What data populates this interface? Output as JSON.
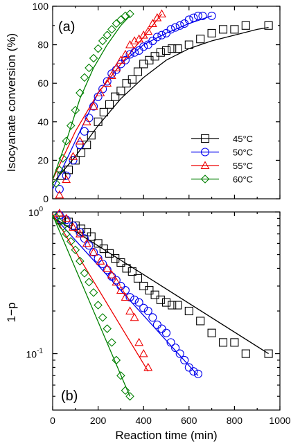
{
  "colors": {
    "45C": "#000000",
    "50C": "#0000ee",
    "55C": "#ee0000",
    "60C": "#008000"
  },
  "chart_data": [
    {
      "type": "scatter",
      "panel_label": "(a)",
      "ylabel": "Isocyanate conversion (%)",
      "xlim": [
        0,
        1000
      ],
      "ylim": [
        0,
        100
      ],
      "y_ticks": [
        "0",
        "20",
        "40",
        "60",
        "80",
        "100"
      ],
      "legend_position": "center-right",
      "series": [
        {
          "name": "45°C",
          "marker": "square",
          "color": "#000000",
          "x": [
            40,
            70,
            100,
            125,
            150,
            170,
            200,
            225,
            250,
            275,
            300,
            325,
            350,
            375,
            400,
            425,
            450,
            475,
            500,
            525,
            550,
            600,
            650,
            700,
            750,
            800,
            850,
            950
          ],
          "y": [
            12,
            15,
            20,
            24,
            28,
            33,
            40,
            45,
            49,
            53,
            56,
            60,
            62,
            66,
            70,
            72,
            74,
            76,
            77,
            78,
            78,
            80,
            83,
            86,
            88,
            88,
            90,
            90
          ],
          "fit_x": [
            0,
            100,
            200,
            300,
            400,
            500,
            600,
            700,
            800,
            900,
            950
          ],
          "fit_y": [
            8,
            22,
            38,
            52,
            63,
            72,
            78,
            82,
            85,
            88,
            89
          ]
        },
        {
          "name": "50°C",
          "marker": "circle",
          "color": "#0000ee",
          "x": [
            30,
            60,
            90,
            120,
            140,
            160,
            180,
            200,
            220,
            240,
            260,
            280,
            300,
            320,
            340,
            360,
            380,
            400,
            420,
            440,
            460,
            480,
            500,
            520,
            540,
            560,
            580,
            600,
            620,
            640,
            660,
            700
          ],
          "y": [
            5,
            12,
            20,
            28,
            35,
            42,
            48,
            53,
            57,
            61,
            65,
            67,
            70,
            72,
            75,
            76,
            77,
            79,
            80,
            82,
            84,
            85,
            86,
            88,
            89,
            90,
            91,
            93,
            94,
            95,
            95,
            95
          ],
          "fit_x": [
            0,
            100,
            200,
            300,
            400,
            500,
            600,
            700
          ],
          "fit_y": [
            5,
            30,
            55,
            70,
            80,
            86,
            91,
            95
          ]
        },
        {
          "name": "55°C",
          "marker": "triangle",
          "color": "#ee0000",
          "x": [
            30,
            60,
            90,
            120,
            150,
            180,
            210,
            240,
            260,
            280,
            300,
            320,
            340,
            360,
            380,
            400,
            420,
            440,
            460,
            480
          ],
          "y": [
            2,
            10,
            22,
            30,
            40,
            48,
            55,
            60,
            64,
            68,
            72,
            75,
            80,
            82,
            83,
            85,
            87,
            91,
            94,
            96
          ],
          "fit_x": [
            0,
            100,
            200,
            300,
            400,
            480
          ],
          "fit_y": [
            10,
            35,
            55,
            70,
            84,
            96
          ]
        },
        {
          "name": "60°C",
          "marker": "diamond",
          "color": "#008000",
          "x": [
            15,
            30,
            45,
            60,
            80,
            100,
            120,
            140,
            160,
            180,
            200,
            220,
            240,
            260,
            280,
            300,
            320,
            340
          ],
          "y": [
            8,
            15,
            21,
            30,
            38,
            46,
            55,
            63,
            68,
            73,
            78,
            82,
            85,
            88,
            91,
            93,
            95,
            96
          ],
          "fit_x": [
            0,
            60,
            120,
            180,
            240,
            300,
            340
          ],
          "fit_y": [
            10,
            30,
            52,
            68,
            80,
            90,
            95
          ]
        }
      ]
    },
    {
      "type": "scatter",
      "panel_label": "(b)",
      "ylabel": "1−p",
      "xlabel": "Reaction time (min)",
      "yscale": "log",
      "xlim": [
        0,
        1000
      ],
      "ylim": [
        0.04,
        1
      ],
      "y_ticks": [
        {
          "value": 1,
          "base": "10",
          "exp": "0"
        },
        {
          "value": 0.1,
          "base": "10",
          "exp": "-1"
        }
      ],
      "x_ticks": [
        "0",
        "200",
        "400",
        "600",
        "800",
        "1000"
      ],
      "series": [
        {
          "name": "45°C",
          "marker": "square",
          "color": "#000000",
          "x": [
            40,
            70,
            100,
            125,
            150,
            170,
            200,
            225,
            250,
            275,
            300,
            325,
            350,
            375,
            400,
            425,
            450,
            475,
            500,
            525,
            550,
            600,
            650,
            700,
            750,
            800,
            850,
            950
          ],
          "y": [
            0.88,
            0.85,
            0.8,
            0.76,
            0.72,
            0.67,
            0.6,
            0.55,
            0.51,
            0.47,
            0.44,
            0.4,
            0.38,
            0.34,
            0.3,
            0.28,
            0.26,
            0.24,
            0.23,
            0.22,
            0.22,
            0.2,
            0.17,
            0.14,
            0.12,
            0.12,
            0.1,
            0.1
          ],
          "fit_x": [
            0,
            950
          ],
          "fit_y": [
            0.92,
            0.1
          ]
        },
        {
          "name": "50°C",
          "marker": "circle",
          "color": "#0000ee",
          "x": [
            30,
            60,
            90,
            120,
            140,
            160,
            180,
            200,
            220,
            240,
            260,
            280,
            300,
            320,
            340,
            360,
            380,
            400,
            420,
            440,
            460,
            480,
            500,
            520,
            540,
            560,
            580,
            600,
            620,
            640
          ],
          "y": [
            0.95,
            0.88,
            0.8,
            0.72,
            0.65,
            0.58,
            0.52,
            0.47,
            0.43,
            0.39,
            0.35,
            0.33,
            0.3,
            0.28,
            0.25,
            0.24,
            0.23,
            0.21,
            0.2,
            0.18,
            0.16,
            0.15,
            0.14,
            0.12,
            0.11,
            0.1,
            0.09,
            0.08,
            0.075,
            0.072
          ],
          "fit_x": [
            0,
            640
          ],
          "fit_y": [
            0.95,
            0.07
          ]
        },
        {
          "name": "55°C",
          "marker": "triangle",
          "color": "#ee0000",
          "x": [
            30,
            60,
            90,
            120,
            150,
            180,
            210,
            240,
            260,
            280,
            300,
            320,
            340,
            360,
            380,
            400,
            420
          ],
          "y": [
            0.98,
            0.9,
            0.78,
            0.7,
            0.6,
            0.52,
            0.45,
            0.4,
            0.36,
            0.32,
            0.28,
            0.25,
            0.2,
            0.18,
            0.12,
            0.1,
            0.08
          ],
          "fit_x": [
            0,
            420
          ],
          "fit_y": [
            0.97,
            0.075
          ]
        },
        {
          "name": "60°C",
          "marker": "diamond",
          "color": "#008000",
          "x": [
            15,
            30,
            45,
            60,
            80,
            100,
            120,
            140,
            160,
            180,
            200,
            220,
            240,
            260,
            280,
            300,
            320,
            340
          ],
          "y": [
            0.92,
            0.85,
            0.79,
            0.7,
            0.62,
            0.54,
            0.45,
            0.37,
            0.32,
            0.27,
            0.22,
            0.18,
            0.15,
            0.12,
            0.09,
            0.07,
            0.055,
            0.05
          ],
          "fit_x": [
            0,
            340
          ],
          "fit_y": [
            0.95,
            0.05
          ]
        }
      ]
    }
  ]
}
